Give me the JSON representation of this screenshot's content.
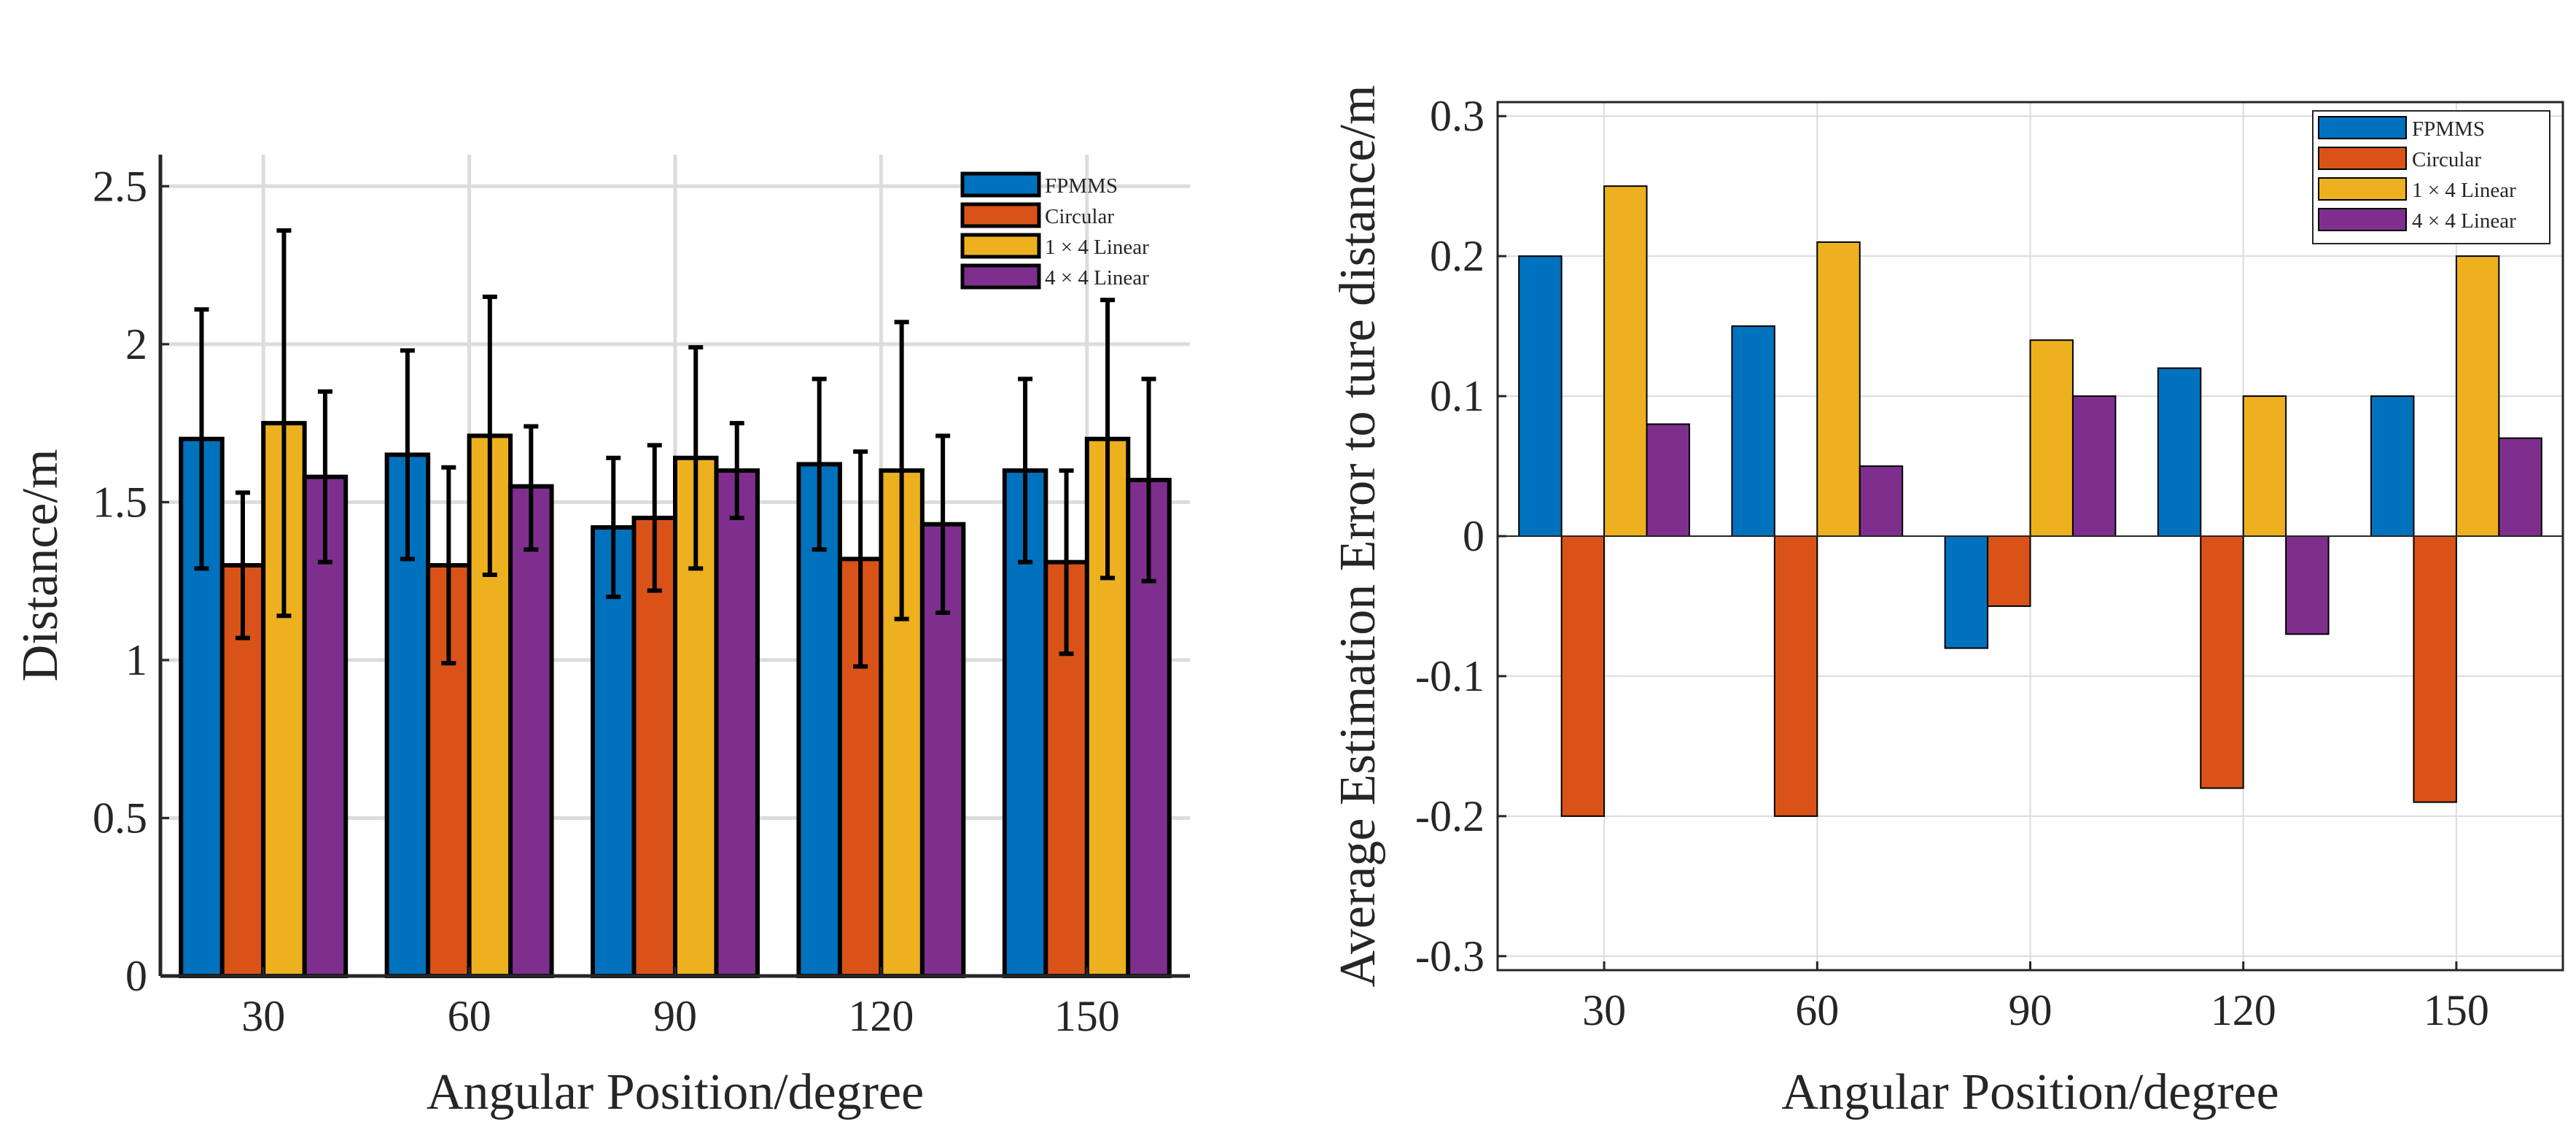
{
  "colors": {
    "FPMMS": "#0072BD",
    "Circular": "#D95319",
    "1 × 4 Linear": "#EDB120",
    "4 × 4 Linear": "#7E2F8E",
    "grid": "#dcdcdc",
    "axis": "#262626"
  },
  "chart_data": [
    {
      "type": "bar",
      "categories": [
        "30",
        "60",
        "90",
        "120",
        "150"
      ],
      "series": [
        {
          "name": "FPMMS",
          "values": [
            1.7,
            1.65,
            1.42,
            1.62,
            1.6
          ],
          "err_low": [
            1.29,
            1.32,
            1.2,
            1.35,
            1.31
          ],
          "err_high": [
            2.11,
            1.98,
            1.64,
            1.89,
            1.89
          ]
        },
        {
          "name": "Circular",
          "values": [
            1.3,
            1.3,
            1.45,
            1.32,
            1.31
          ],
          "err_low": [
            1.07,
            0.99,
            1.22,
            0.98,
            1.02
          ],
          "err_high": [
            1.53,
            1.61,
            1.68,
            1.66,
            1.6
          ]
        },
        {
          "name": "1 × 4 Linear",
          "values": [
            1.75,
            1.71,
            1.64,
            1.6,
            1.7
          ],
          "err_low": [
            1.14,
            1.27,
            1.29,
            1.13,
            1.26
          ],
          "err_high": [
            2.36,
            2.15,
            1.99,
            2.07,
            2.14
          ]
        },
        {
          "name": "4 × 4 Linear",
          "values": [
            1.58,
            1.55,
            1.6,
            1.43,
            1.57
          ],
          "err_low": [
            1.31,
            1.35,
            1.45,
            1.15,
            1.25
          ],
          "err_high": [
            1.85,
            1.74,
            1.75,
            1.71,
            1.89
          ]
        }
      ],
      "xlabel": "Angular Position/degree",
      "ylabel": "Distance/m",
      "ylim": [
        0,
        2.6
      ],
      "yticks": [
        0,
        0.5,
        1,
        1.5,
        2,
        2.5
      ],
      "ytick_labels": [
        "0",
        "0.5",
        "1",
        "1.5",
        "2",
        "2.5"
      ],
      "grid": true,
      "legend_position": "top-right",
      "error_bars": true
    },
    {
      "type": "bar",
      "categories": [
        "30",
        "60",
        "90",
        "120",
        "150"
      ],
      "series": [
        {
          "name": "FPMMS",
          "values": [
            0.2,
            0.15,
            -0.08,
            0.12,
            0.1
          ]
        },
        {
          "name": "Circular",
          "values": [
            -0.2,
            -0.2,
            -0.05,
            -0.18,
            -0.19
          ]
        },
        {
          "name": "1 × 4 Linear",
          "values": [
            0.25,
            0.21,
            0.14,
            0.1,
            0.2
          ]
        },
        {
          "name": "4 × 4 Linear",
          "values": [
            0.08,
            0.05,
            0.1,
            -0.07,
            0.07
          ]
        }
      ],
      "xlabel": "Angular Position/degree",
      "ylabel": "Average Estimation Error to ture distance/m",
      "ylim": [
        -0.31,
        0.31
      ],
      "yticks": [
        -0.3,
        -0.2,
        -0.1,
        0,
        0.1,
        0.2,
        0.3
      ],
      "ytick_labels": [
        "-0.3",
        "-0.2",
        "-0.1",
        "0",
        "0.1",
        "0.2",
        "0.3"
      ],
      "grid": true,
      "legend_position": "top-right",
      "box": true
    }
  ]
}
